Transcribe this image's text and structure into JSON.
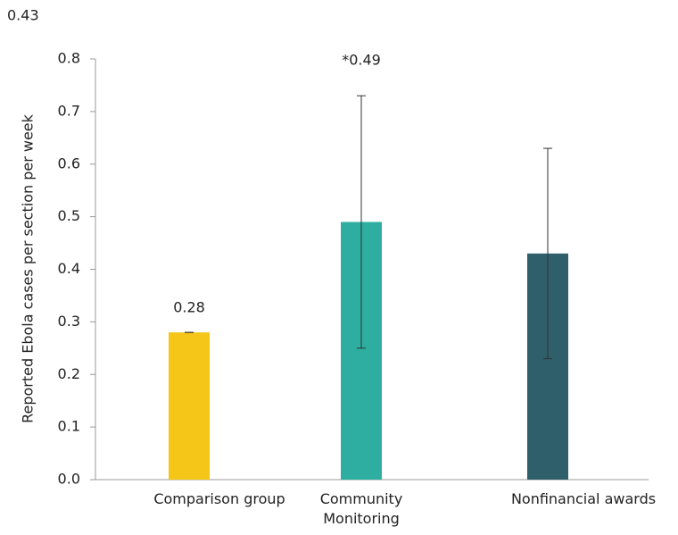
{
  "chart_data": {
    "type": "bar",
    "y_label": "Reported Ebola cases per section per week",
    "categories": [
      "Comparison group",
      "Community Monitoring",
      "Nonfinancial awards"
    ],
    "values": [
      0.28,
      0.49,
      0.43
    ],
    "value_labels": [
      "0.28",
      "*0.49",
      "0.43"
    ],
    "error": [
      0,
      0.24,
      0.2
    ],
    "colors": [
      "#f5c518",
      "#2eaea0",
      "#2e5f6b"
    ],
    "ylim": [
      0,
      0.8
    ],
    "yticks": [
      {
        "value": 0,
        "label": "0.0"
      },
      0.1,
      0.2,
      0.3,
      0.4,
      0.5,
      0.6,
      0.7,
      0.8
    ],
    "grid": false
  }
}
